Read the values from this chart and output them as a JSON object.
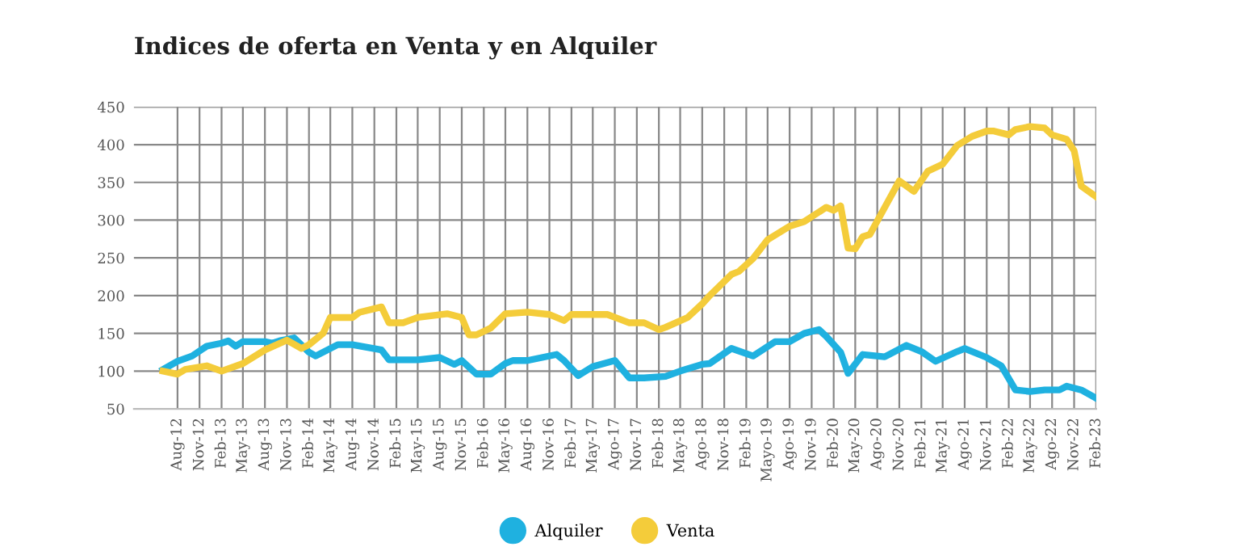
{
  "chart_data": {
    "type": "line",
    "title": "Indices de oferta en Venta y en Alquiler",
    "xlim": [
      "2012-02",
      "2023-02"
    ],
    "ylim": [
      50,
      450
    ],
    "yticks": [
      50,
      100,
      150,
      200,
      250,
      300,
      350,
      400,
      450
    ],
    "xticks": [
      {
        "value": "2012-08",
        "label": "Aug-12"
      },
      {
        "value": "2012-11",
        "label": "Nov-12"
      },
      {
        "value": "2013-02",
        "label": "Feb-13"
      },
      {
        "value": "2013-05",
        "label": "May-13"
      },
      {
        "value": "2013-08",
        "label": "Aug-13"
      },
      {
        "value": "2013-11",
        "label": "Nov-13"
      },
      {
        "value": "2014-02",
        "label": "Feb-14"
      },
      {
        "value": "2014-05",
        "label": "May-14"
      },
      {
        "value": "2014-08",
        "label": "Aug-14"
      },
      {
        "value": "2014-11",
        "label": "Nov-14"
      },
      {
        "value": "2015-02",
        "label": "Feb-15"
      },
      {
        "value": "2015-05",
        "label": "May-15"
      },
      {
        "value": "2015-08",
        "label": "Aug-15"
      },
      {
        "value": "2015-11",
        "label": "Nov-15"
      },
      {
        "value": "2016-02",
        "label": "Feb-16"
      },
      {
        "value": "2016-05",
        "label": "May-16"
      },
      {
        "value": "2016-08",
        "label": "Aug-16"
      },
      {
        "value": "2016-11",
        "label": "Nov-16"
      },
      {
        "value": "2017-02",
        "label": "Feb-17"
      },
      {
        "value": "2017-05",
        "label": "May-17"
      },
      {
        "value": "2017-08",
        "label": "Ago-17"
      },
      {
        "value": "2017-11",
        "label": "Nov-17"
      },
      {
        "value": "2018-02",
        "label": "Feb-18"
      },
      {
        "value": "2018-05",
        "label": "May-18"
      },
      {
        "value": "2018-08",
        "label": "Ago-18"
      },
      {
        "value": "2018-11",
        "label": "Nov-18"
      },
      {
        "value": "2019-02",
        "label": "Feb-19"
      },
      {
        "value": "2019-05",
        "label": "Mayo-19"
      },
      {
        "value": "2019-08",
        "label": "Ago-19"
      },
      {
        "value": "2019-11",
        "label": "Nov-19"
      },
      {
        "value": "2020-02",
        "label": "Feb-20"
      },
      {
        "value": "2020-05",
        "label": "May-20"
      },
      {
        "value": "2020-08",
        "label": "Ago-20"
      },
      {
        "value": "2020-11",
        "label": "Nov-20"
      },
      {
        "value": "2021-02",
        "label": "Feb-21"
      },
      {
        "value": "2021-05",
        "label": "May-21"
      },
      {
        "value": "2021-08",
        "label": "Ago-21"
      },
      {
        "value": "2021-11",
        "label": "Nov-21"
      },
      {
        "value": "2022-02",
        "label": "Feb-22"
      },
      {
        "value": "2022-05",
        "label": "May-22"
      },
      {
        "value": "2022-08",
        "label": "Ago-22"
      },
      {
        "value": "2022-11",
        "label": "Nov-22"
      },
      {
        "value": "2023-02",
        "label": "Feb-23"
      }
    ],
    "grid": true,
    "legend": "bottom",
    "marker": "none",
    "line_style": "solid",
    "series": [
      {
        "name": "Alquiler",
        "color": "#1fb1e0",
        "x": [
          "2012-06",
          "2012-08",
          "2012-10",
          "2012-12",
          "2013-02",
          "2013-03",
          "2013-04",
          "2013-05",
          "2013-08",
          "2013-09",
          "2013-10",
          "2013-12",
          "2014-02",
          "2014-03",
          "2014-06",
          "2014-08",
          "2014-12",
          "2015-01",
          "2015-05",
          "2015-08",
          "2015-10",
          "2015-11",
          "2016-01",
          "2016-03",
          "2016-05",
          "2016-06",
          "2016-08",
          "2016-10",
          "2016-12",
          "2017-01",
          "2017-03",
          "2017-05",
          "2017-08",
          "2017-10",
          "2017-12",
          "2018-03",
          "2018-05",
          "2018-08",
          "2018-09",
          "2018-12",
          "2019-03",
          "2019-06",
          "2019-08",
          "2019-10",
          "2019-12",
          "2020-01",
          "2020-03",
          "2020-04",
          "2020-06",
          "2020-09",
          "2020-12",
          "2021-02",
          "2021-04",
          "2021-07",
          "2021-08",
          "2021-11",
          "2022-01",
          "2022-03",
          "2022-05",
          "2022-07",
          "2022-09",
          "2022-10",
          "2022-12",
          "2023-02"
        ],
        "values": [
          102,
          113,
          120,
          133,
          137,
          140,
          133,
          139,
          139,
          137,
          140,
          144,
          125,
          120,
          135,
          135,
          128,
          115,
          115,
          118,
          109,
          114,
          96,
          96,
          110,
          114,
          114,
          118,
          122,
          114,
          94,
          106,
          114,
          91,
          91,
          93,
          100,
          109,
          110,
          130,
          120,
          139,
          139,
          150,
          155,
          146,
          125,
          97,
          122,
          119,
          134,
          126,
          113,
          126,
          130,
          118,
          107,
          75,
          73,
          75,
          75,
          80,
          75,
          64
        ]
      },
      {
        "name": "Venta",
        "color": "#f4cc3a",
        "x": [
          "2012-06",
          "2012-08",
          "2012-09",
          "2012-12",
          "2013-02",
          "2013-05",
          "2013-08",
          "2013-11",
          "2014-01",
          "2014-02",
          "2014-04",
          "2014-05",
          "2014-08",
          "2014-09",
          "2014-12",
          "2015-01",
          "2015-03",
          "2015-05",
          "2015-09",
          "2015-11",
          "2015-12",
          "2016-01",
          "2016-03",
          "2016-05",
          "2016-08",
          "2016-11",
          "2017-01",
          "2017-02",
          "2017-07",
          "2017-10",
          "2017-12",
          "2018-02",
          "2018-03",
          "2018-06",
          "2018-08",
          "2018-09",
          "2018-12",
          "2019-01",
          "2019-03",
          "2019-05",
          "2019-08",
          "2019-10",
          "2020-01",
          "2020-02",
          "2020-03",
          "2020-04",
          "2020-05",
          "2020-06",
          "2020-07",
          "2020-11",
          "2021-01",
          "2021-03",
          "2021-05",
          "2021-07",
          "2021-09",
          "2021-11",
          "2021-12",
          "2022-02",
          "2022-03",
          "2022-05",
          "2022-07",
          "2022-08",
          "2022-10",
          "2022-11",
          "2022-12",
          "2023-02"
        ],
        "values": [
          100,
          96,
          102,
          107,
          100,
          110,
          128,
          141,
          130,
          135,
          150,
          171,
          171,
          178,
          185,
          164,
          164,
          171,
          176,
          171,
          148,
          148,
          157,
          176,
          178,
          175,
          167,
          175,
          175,
          164,
          164,
          155,
          158,
          171,
          189,
          200,
          228,
          232,
          249,
          274,
          292,
          298,
          317,
          313,
          319,
          263,
          262,
          278,
          281,
          352,
          338,
          365,
          374,
          399,
          411,
          418,
          418,
          413,
          420,
          424,
          422,
          413,
          407,
          392,
          345,
          331
        ]
      }
    ]
  }
}
